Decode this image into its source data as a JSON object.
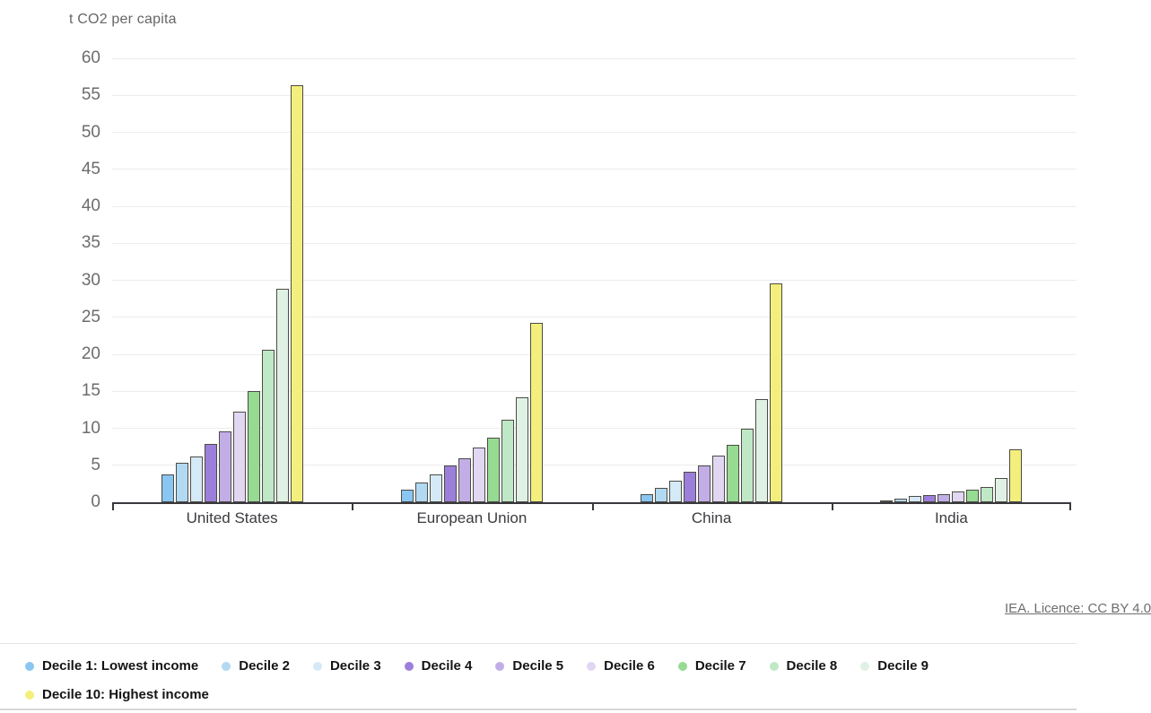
{
  "header": {
    "title": "t CO2 per capita"
  },
  "attribution": {
    "link_text": "IEA. Licence: CC BY 4.0"
  },
  "chart_data": {
    "type": "bar",
    "title": "t CO2 per capita",
    "categories": [
      "United States",
      "European Union",
      "China",
      "India"
    ],
    "series": [
      {
        "name": "Decile 1: Lowest income",
        "color": "#89c6f1",
        "values": [
          3.7,
          1.7,
          1.1,
          0.3
        ]
      },
      {
        "name": "Decile 2",
        "color": "#b2d9f2",
        "values": [
          5.3,
          2.7,
          1.9,
          0.5
        ]
      },
      {
        "name": "Decile 3",
        "color": "#d5eaf7",
        "values": [
          6.2,
          3.8,
          2.9,
          0.8
        ]
      },
      {
        "name": "Decile 4",
        "color": "#9c7fdb",
        "values": [
          7.9,
          5.0,
          4.1,
          1.0
        ]
      },
      {
        "name": "Decile 5",
        "color": "#c2aee7",
        "values": [
          9.6,
          5.9,
          5.0,
          1.1
        ]
      },
      {
        "name": "Decile 6",
        "color": "#e1d7f3",
        "values": [
          12.3,
          7.4,
          6.3,
          1.4
        ]
      },
      {
        "name": "Decile 7",
        "color": "#97db92",
        "values": [
          15.0,
          8.7,
          7.8,
          1.7
        ]
      },
      {
        "name": "Decile 8",
        "color": "#bfe8c6",
        "values": [
          20.6,
          11.1,
          9.9,
          2.1
        ]
      },
      {
        "name": "Decile 9",
        "color": "#dff1e4",
        "values": [
          28.8,
          14.2,
          13.9,
          3.3
        ]
      },
      {
        "name": "Decile 10: Highest income",
        "color": "#f4ef7d",
        "values": [
          56.4,
          24.2,
          29.6,
          7.1
        ]
      }
    ],
    "ylim": [
      0,
      60
    ],
    "ytick_step": 5,
    "grid": true,
    "legend_position": "bottom"
  },
  "colors": {
    "axis": "#39383d",
    "grid": "#ececec",
    "tick_label": "#6c6c6c",
    "bar_border": "#4c4b44",
    "accent_highest": "#f4ef7d"
  }
}
